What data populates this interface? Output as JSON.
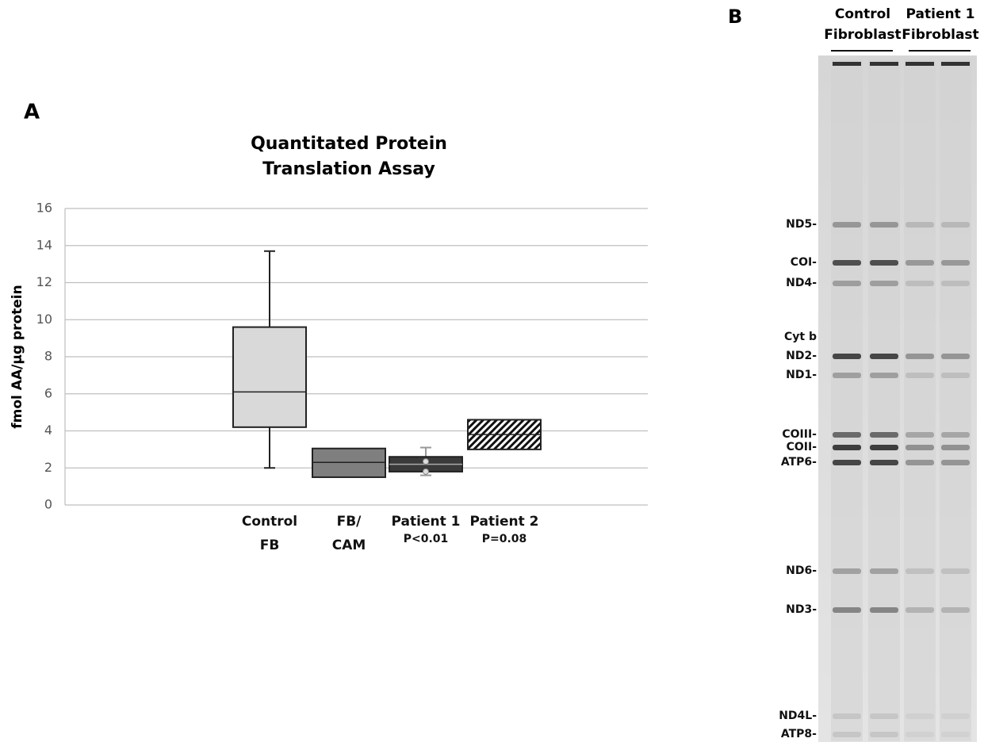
{
  "chart_data": {
    "type": "box",
    "panel_label": "A",
    "title": [
      "Quantitated Protein",
      "Translation Assay"
    ],
    "y_label": "fmol AA/µg protein",
    "categories": [
      [
        "Control",
        "FB"
      ],
      [
        "FB/",
        "CAM"
      ],
      [
        "Patient 1"
      ],
      [
        "Patient 2"
      ]
    ],
    "annotations": [
      null,
      null,
      "P<0.01",
      "P=0.08"
    ],
    "boxes": [
      {
        "whislo": 2.0,
        "q1": 4.2,
        "med": 6.1,
        "q3": 9.6,
        "whishi": 13.7
      },
      {
        "q1": 1.5,
        "med": 2.3,
        "q3": 3.05
      },
      {
        "whislo": 1.6,
        "q1": 1.8,
        "med": 2.2,
        "q3": 2.6,
        "whishi": 3.1,
        "points": [
          2.35,
          1.8
        ]
      },
      {
        "q1": 3.0,
        "med": 3.8,
        "q3": 4.6
      }
    ],
    "colors": [
      "#d9d9d9",
      "#7f7f7f",
      "#3a3a3a",
      "hatch"
    ],
    "ylim": [
      0,
      16
    ],
    "yticks": [
      0,
      2,
      4,
      6,
      8,
      10,
      12,
      14,
      16
    ],
    "grid": true
  },
  "gel": {
    "panel_label": "B",
    "lane_groups": [
      [
        "Control",
        "Fibroblast"
      ],
      [
        "Patient 1",
        "Fibroblast"
      ]
    ],
    "bands": [
      "ND5-",
      "COI-",
      "ND4-",
      "Cyt b",
      "ND2-",
      "ND1-",
      "COIII-",
      "COII-",
      "ATP6-",
      "ND6-",
      "ND3-",
      "ND4L-",
      "ATP8-"
    ]
  }
}
